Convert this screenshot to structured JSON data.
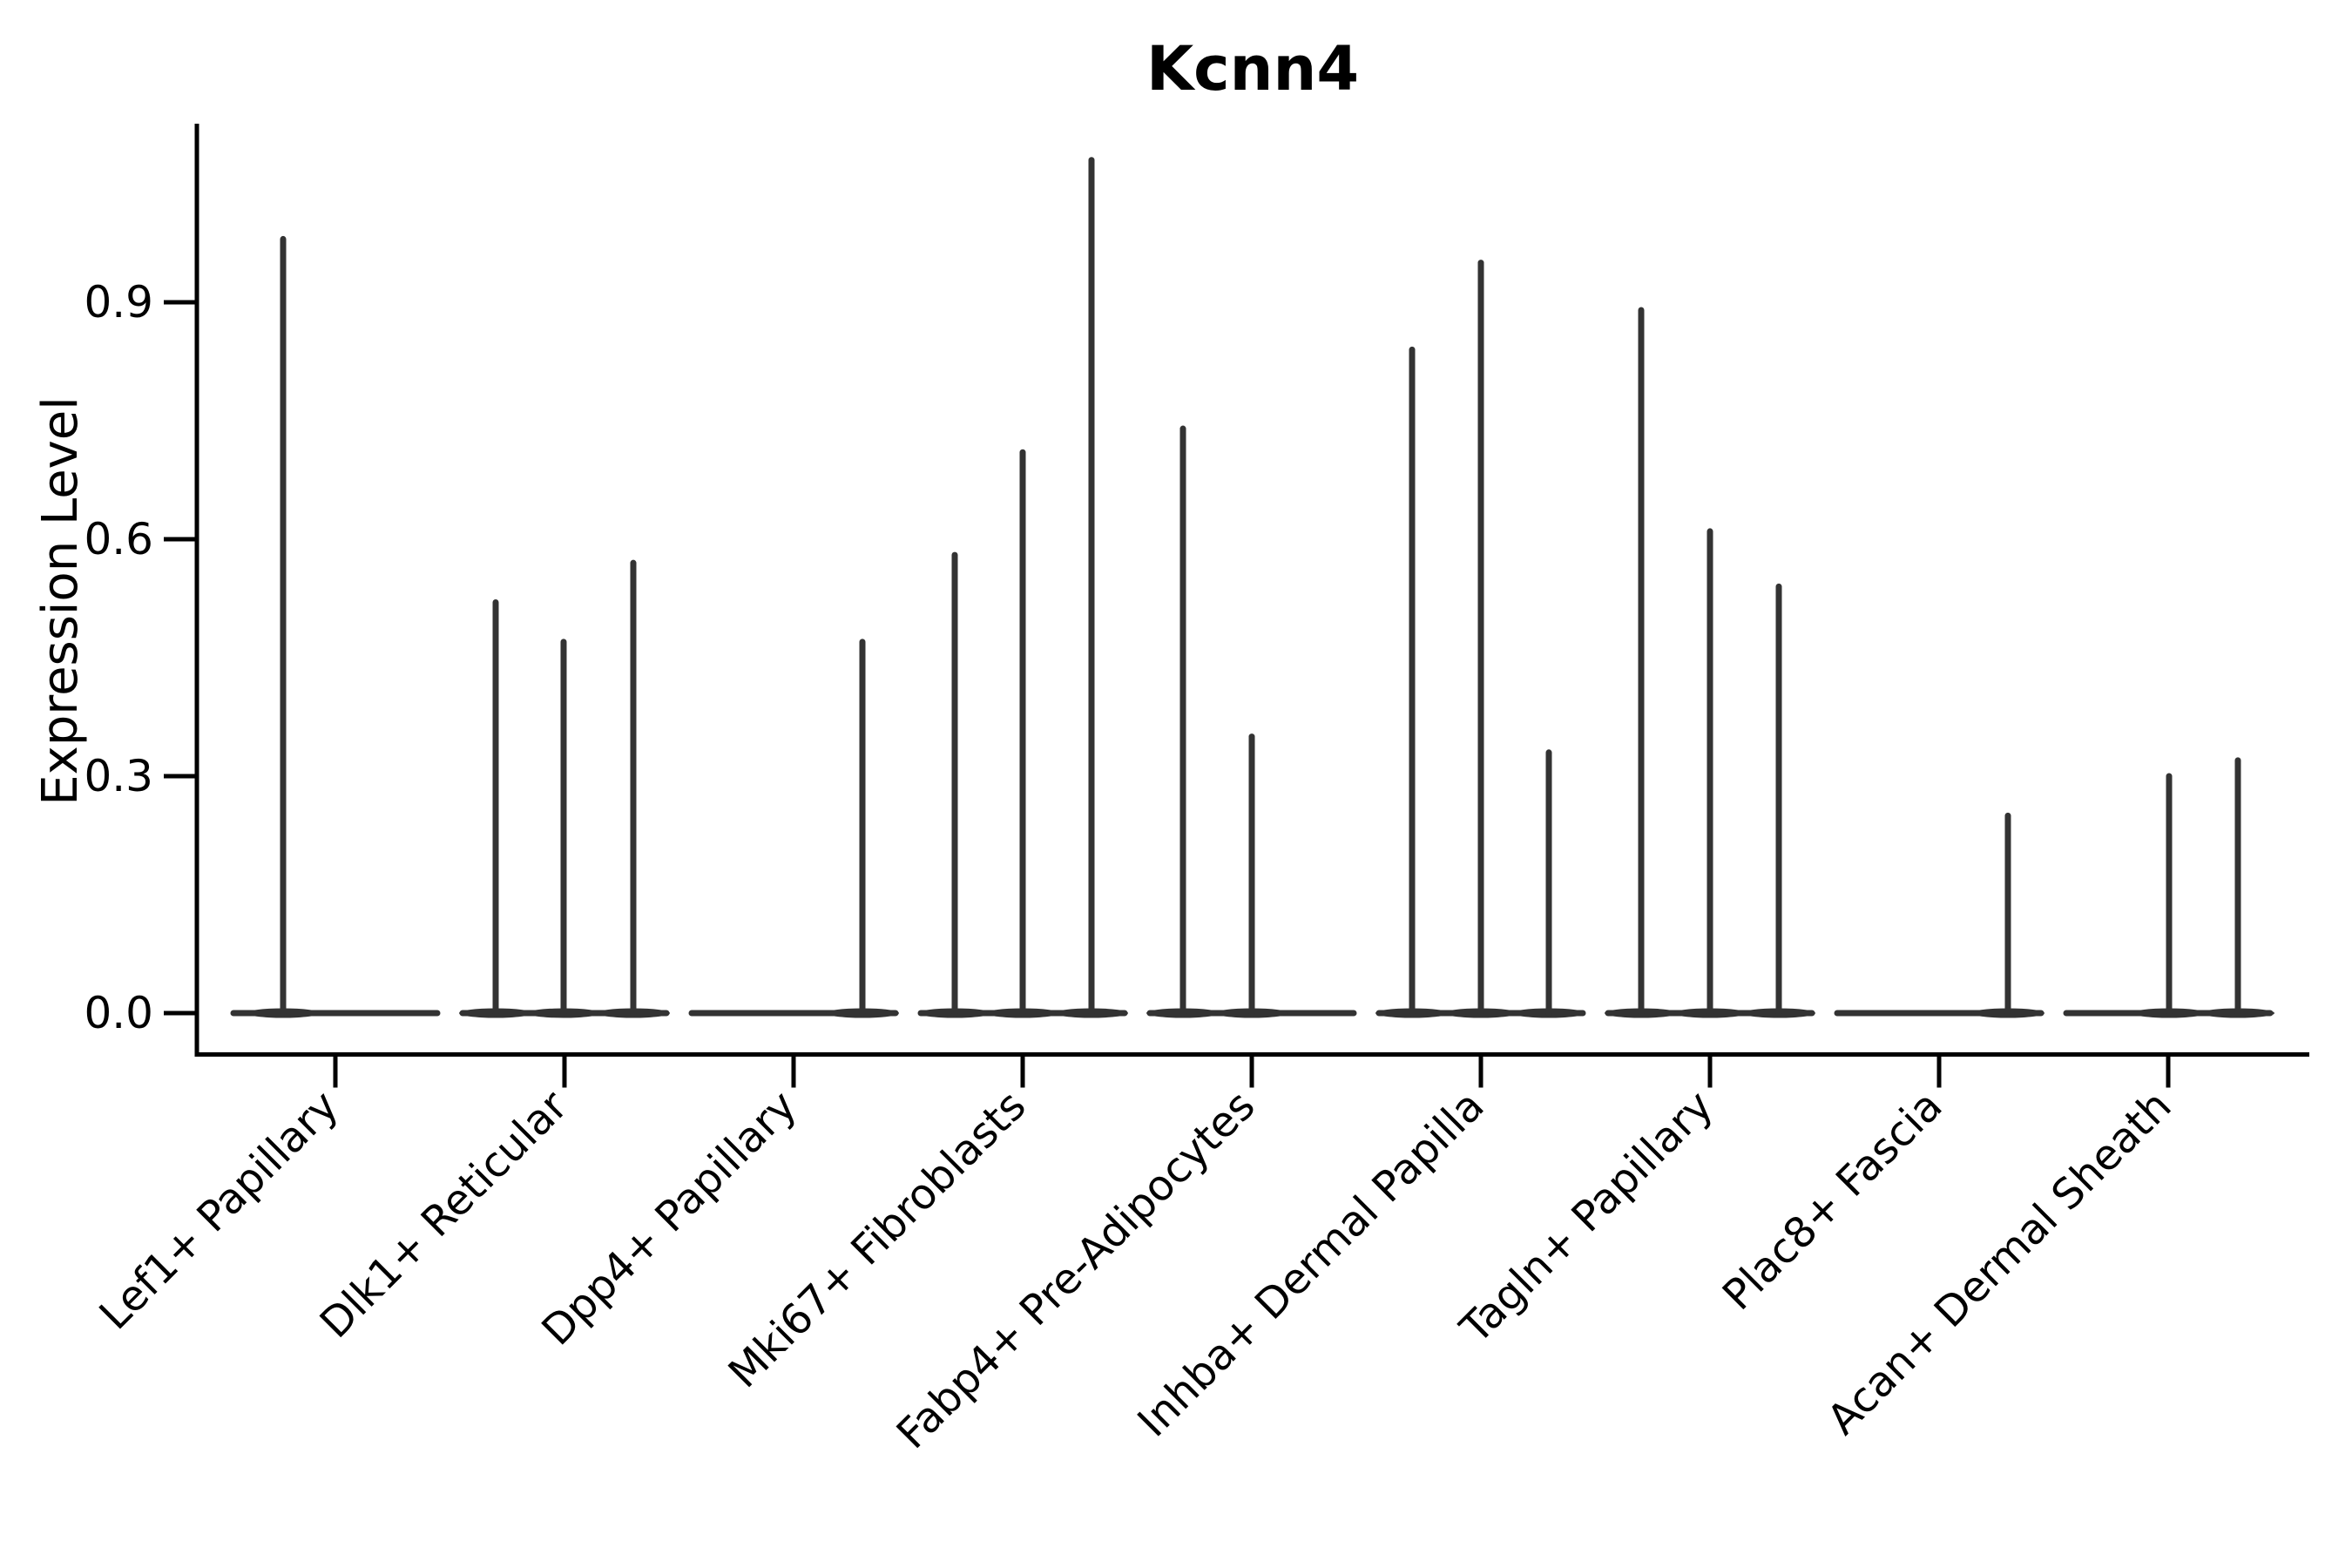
{
  "figure": {
    "title": "Kcnn4",
    "ylabel": "Expression Level"
  },
  "chart_data": {
    "type": "violin",
    "title": "Kcnn4",
    "xlabel": "",
    "ylabel": "Expression Level",
    "grid": false,
    "legend": "none",
    "ylim": [
      -0.05,
      1.13
    ],
    "ytick_values": [
      0.0,
      0.3,
      0.6,
      0.9
    ],
    "ytick_labels": [
      "0.0",
      "0.3",
      "0.6",
      "0.9"
    ],
    "categories": [
      "Lef1+ Papillary",
      "Dlk1+ Reticular",
      "Dpp4+ Papillary",
      "Mki67+ Fibroblasts",
      "Fabp4+ Pre-Adipocytes",
      "Inhba+ Dermal Papilla",
      "Tagln+ Papillary",
      "Plac8+ Fascia",
      "Acan+ Dermal Sheath"
    ],
    "groups": [
      {
        "label": "Lef1+ Papillary",
        "violins": [
          {
            "dx": -60,
            "value": 0.98
          }
        ]
      },
      {
        "label": "Dlk1+ Reticular",
        "violins": [
          {
            "dx": -79,
            "value": 0.52
          },
          {
            "dx": -1,
            "value": 0.47
          },
          {
            "dx": 79,
            "value": 0.57
          }
        ]
      },
      {
        "label": "Dpp4+ Papillary",
        "violins": [
          {
            "dx": 79,
            "value": 0.47
          }
        ]
      },
      {
        "label": "Mki67+ Fibroblasts",
        "violins": [
          {
            "dx": -78,
            "value": 0.58
          },
          {
            "dx": 0,
            "value": 0.71
          },
          {
            "dx": 79,
            "value": 1.08
          }
        ]
      },
      {
        "label": "Fabp4+ Pre-Adipocytes",
        "violins": [
          {
            "dx": -79,
            "value": 0.74
          },
          {
            "dx": 0,
            "value": 0.35
          }
        ]
      },
      {
        "label": "Inhba+ Dermal Papilla",
        "violins": [
          {
            "dx": -79,
            "value": 0.84
          },
          {
            "dx": 0,
            "value": 0.95
          },
          {
            "dx": 78,
            "value": 0.33
          }
        ]
      },
      {
        "label": "Tagln+ Papillary",
        "violins": [
          {
            "dx": -79,
            "value": 0.89
          },
          {
            "dx": 0,
            "value": 0.61
          },
          {
            "dx": 79,
            "value": 0.54
          }
        ]
      },
      {
        "label": "Plac8+ Fascia",
        "violins": [
          {
            "dx": 79,
            "value": 0.25
          }
        ]
      },
      {
        "label": "Acan+ Dermal Sheath",
        "violins": [
          {
            "dx": 1,
            "value": 0.3
          },
          {
            "dx": 80,
            "value": 0.32
          }
        ]
      }
    ],
    "colors": {
      "violin_stroke": "#333333",
      "spine": "#000000",
      "text": "#000000",
      "background": "#ffffff"
    }
  }
}
